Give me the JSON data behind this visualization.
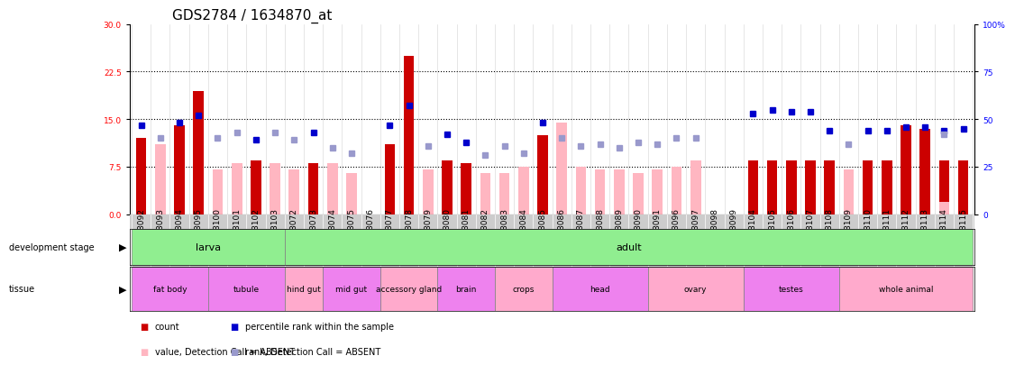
{
  "title": "GDS2784 / 1634870_at",
  "samples": [
    "GSM188092",
    "GSM188093",
    "GSM188094",
    "GSM188095",
    "GSM188100",
    "GSM188101",
    "GSM188102",
    "GSM188103",
    "GSM188072",
    "GSM188073",
    "GSM188074",
    "GSM188075",
    "GSM188076",
    "GSM188077",
    "GSM188078",
    "GSM188079",
    "GSM188080",
    "GSM188081",
    "GSM188082",
    "GSM188083",
    "GSM188084",
    "GSM188085",
    "GSM188086",
    "GSM188087",
    "GSM188088",
    "GSM188089",
    "GSM188090",
    "GSM188091",
    "GSM188096",
    "GSM188097",
    "GSM188098",
    "GSM188099",
    "GSM188104",
    "GSM188105",
    "GSM188106",
    "GSM188107",
    "GSM188108",
    "GSM188109",
    "GSM188110",
    "GSM188111",
    "GSM188112",
    "GSM188113",
    "GSM188114",
    "GSM188115"
  ],
  "count": [
    12.0,
    null,
    14.0,
    19.5,
    null,
    null,
    8.5,
    null,
    null,
    8.0,
    null,
    null,
    null,
    11.0,
    25.0,
    null,
    8.5,
    8.0,
    null,
    null,
    null,
    12.5,
    null,
    null,
    null,
    null,
    null,
    null,
    null,
    null,
    null,
    null,
    8.5,
    8.5,
    8.5,
    8.5,
    8.5,
    null,
    8.5,
    8.5,
    14.0,
    13.5,
    8.5,
    8.5
  ],
  "count_absent": [
    null,
    11.0,
    null,
    null,
    7.0,
    8.0,
    null,
    8.0,
    7.0,
    null,
    8.0,
    6.5,
    null,
    null,
    null,
    7.0,
    null,
    null,
    6.5,
    6.5,
    7.5,
    null,
    14.5,
    7.5,
    7.0,
    7.0,
    6.5,
    7.0,
    7.5,
    8.5,
    null,
    null,
    null,
    null,
    null,
    null,
    null,
    7.0,
    null,
    null,
    null,
    null,
    2.0,
    null
  ],
  "rank": [
    47.0,
    null,
    48.0,
    52.0,
    null,
    null,
    39.0,
    null,
    null,
    43.0,
    null,
    null,
    null,
    47.0,
    57.0,
    null,
    42.0,
    38.0,
    null,
    null,
    null,
    48.0,
    null,
    null,
    null,
    null,
    null,
    null,
    null,
    null,
    null,
    null,
    53.0,
    55.0,
    54.0,
    54.0,
    44.0,
    null,
    44.0,
    44.0,
    46.0,
    46.0,
    44.0,
    45.0
  ],
  "rank_absent": [
    null,
    40.0,
    null,
    null,
    40.0,
    43.0,
    null,
    43.0,
    39.0,
    null,
    35.0,
    32.0,
    null,
    null,
    null,
    36.0,
    null,
    null,
    31.0,
    36.0,
    32.0,
    null,
    40.0,
    36.0,
    37.0,
    35.0,
    38.0,
    37.0,
    40.0,
    40.0,
    null,
    null,
    null,
    null,
    null,
    null,
    null,
    37.0,
    null,
    null,
    null,
    null,
    42.0,
    null
  ],
  "ylim_left": [
    0,
    30
  ],
  "yticks_left": [
    0,
    7.5,
    15,
    22.5,
    30
  ],
  "ylim_right": [
    0,
    100
  ],
  "yticks_right": [
    0,
    25,
    50,
    75,
    100
  ],
  "development_stage": [
    {
      "label": "larva",
      "start": 0,
      "end": 8
    },
    {
      "label": "adult",
      "start": 8,
      "end": 44
    }
  ],
  "dev_stage_color": "#90ee90",
  "tissue": [
    {
      "label": "fat body",
      "start": 0,
      "end": 4,
      "color": "#ee82ee"
    },
    {
      "label": "tubule",
      "start": 4,
      "end": 8,
      "color": "#ee82ee"
    },
    {
      "label": "hind gut",
      "start": 8,
      "end": 10,
      "color": "#ffaacc"
    },
    {
      "label": "mid gut",
      "start": 10,
      "end": 13,
      "color": "#ee82ee"
    },
    {
      "label": "accessory gland",
      "start": 13,
      "end": 16,
      "color": "#ffaacc"
    },
    {
      "label": "brain",
      "start": 16,
      "end": 19,
      "color": "#ee82ee"
    },
    {
      "label": "crops",
      "start": 19,
      "end": 22,
      "color": "#ffaacc"
    },
    {
      "label": "head",
      "start": 22,
      "end": 27,
      "color": "#ee82ee"
    },
    {
      "label": "ovary",
      "start": 27,
      "end": 32,
      "color": "#ffaacc"
    },
    {
      "label": "testes",
      "start": 32,
      "end": 37,
      "color": "#ee82ee"
    },
    {
      "label": "whole animal",
      "start": 37,
      "end": 44,
      "color": "#ffaacc"
    }
  ],
  "bar_width": 0.55,
  "count_color": "#cc0000",
  "count_absent_color": "#ffb6c1",
  "rank_color": "#0000cc",
  "rank_absent_color": "#9999cc",
  "background_color": "#ffffff",
  "xticklabel_bg": "#cccccc",
  "grid_color": "#000000",
  "dotted_lines": [
    7.5,
    15.0,
    22.5
  ],
  "title_fontsize": 11,
  "tick_fontsize": 6.5,
  "label_fontsize": 8
}
